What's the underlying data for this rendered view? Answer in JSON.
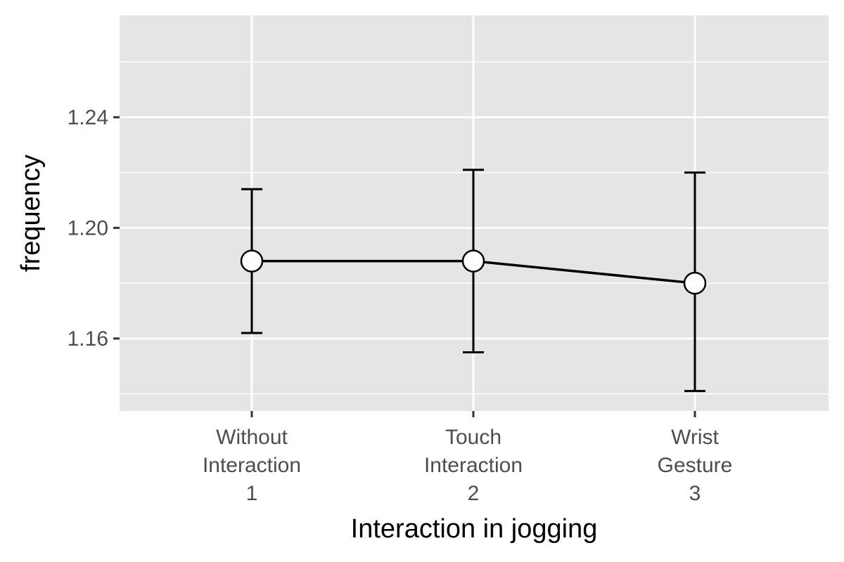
{
  "chart_data": {
    "type": "line",
    "xlabel": "Interaction in jogging",
    "ylabel": "frequency",
    "categories": [
      [
        "Without",
        "Interaction",
        "1"
      ],
      [
        "Touch",
        "Interaction",
        "2"
      ],
      [
        "Wrist",
        "Gesture",
        "3"
      ]
    ],
    "series": [
      {
        "values": [
          1.188,
          1.188,
          1.18
        ],
        "error_low": [
          1.162,
          1.155,
          1.141
        ],
        "error_high": [
          1.214,
          1.221,
          1.22
        ]
      }
    ],
    "ylim": [
      1.1338,
      1.2768
    ],
    "y_ticks": [
      1.16,
      1.2,
      1.24
    ],
    "y_tick_labels": [
      "1.16",
      "1.20",
      "1.24"
    ],
    "y_minor_ticks": [
      1.14,
      1.18,
      1.22,
      1.26
    ],
    "grid": true,
    "legend": "none",
    "colors": {
      "panel": "#e5e5e5",
      "grid": "#ffffff",
      "line": "#000000",
      "point_fill": "#ffffff",
      "tick_text": "#4d4d4d"
    }
  }
}
